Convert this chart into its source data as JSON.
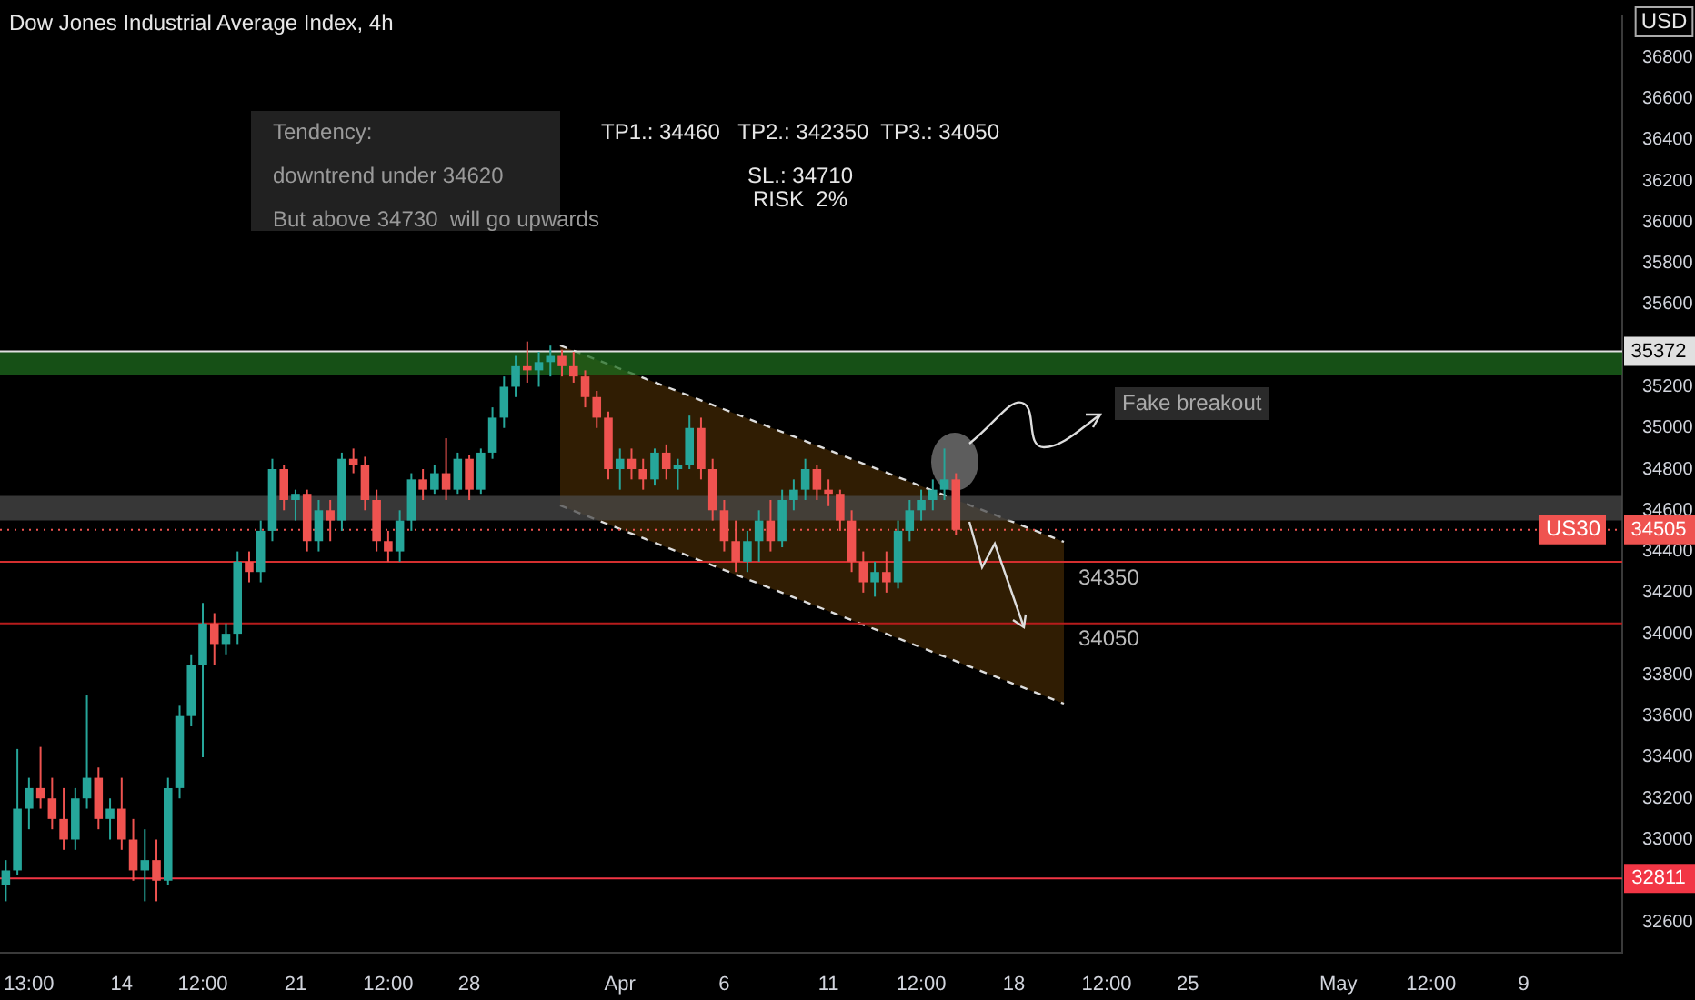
{
  "chart_data": {
    "type": "candlestick",
    "title": "Dow Jones Industrial Average Index, 4h",
    "ylabel": "USD",
    "categories": [
      null,
      null,
      "13:00",
      null,
      null,
      null,
      null,
      null,
      null,
      null,
      "14",
      null,
      null,
      null,
      null,
      null,
      null,
      "12:00",
      null,
      null,
      null,
      null,
      null,
      null,
      null,
      "21",
      null,
      null,
      null,
      null,
      null,
      null,
      null,
      "12:00",
      null,
      null,
      null,
      null,
      null,
      null,
      "28",
      null,
      null,
      null,
      null,
      null,
      null,
      null,
      null,
      null,
      null,
      null,
      null,
      "Apr",
      null,
      null,
      null,
      null,
      null,
      null,
      null,
      null,
      "6",
      null,
      null,
      null,
      null,
      null,
      null,
      null,
      null,
      "11",
      null,
      null,
      null,
      null,
      null,
      null,
      null,
      "12:00",
      null,
      null,
      null,
      null,
      null,
      null,
      null,
      "18",
      null,
      null,
      null,
      null,
      null,
      null,
      null,
      "12:00",
      null,
      null,
      null,
      null,
      null,
      null,
      "25",
      null,
      null,
      null,
      null,
      null,
      null,
      null,
      null,
      null,
      null,
      null,
      null,
      "May",
      null,
      null,
      null,
      null,
      null,
      null,
      null,
      "12:00",
      null,
      null,
      null,
      null,
      null,
      null,
      null,
      "9",
      null,
      null,
      null,
      null,
      null,
      null,
      null,
      null
    ],
    "ohlc": [
      [
        32780,
        32900,
        32700,
        32850
      ],
      [
        32850,
        33440,
        32830,
        33150
      ],
      [
        33150,
        33300,
        33050,
        33250
      ],
      [
        33250,
        33450,
        33150,
        33200
      ],
      [
        33200,
        33300,
        33050,
        33100
      ],
      [
        33100,
        33250,
        32950,
        33000
      ],
      [
        33000,
        33250,
        32950,
        33200
      ],
      [
        33200,
        33700,
        33150,
        33300
      ],
      [
        33300,
        33350,
        33050,
        33100
      ],
      [
        33100,
        33200,
        33000,
        33150
      ],
      [
        33150,
        33300,
        32950,
        33000
      ],
      [
        33000,
        33100,
        32800,
        32850
      ],
      [
        32850,
        33050,
        32700,
        32900
      ],
      [
        32900,
        33000,
        32700,
        32800
      ],
      [
        32800,
        33300,
        32780,
        33250
      ],
      [
        33250,
        33650,
        33200,
        33600
      ],
      [
        33600,
        33900,
        33550,
        33850
      ],
      [
        33850,
        34150,
        33400,
        34050
      ],
      [
        34050,
        34100,
        33850,
        33950
      ],
      [
        33950,
        34050,
        33900,
        34000
      ],
      [
        34000,
        34400,
        33950,
        34350
      ],
      [
        34350,
        34400,
        34250,
        34300
      ],
      [
        34300,
        34550,
        34250,
        34500
      ],
      [
        34500,
        34850,
        34450,
        34800
      ],
      [
        34800,
        34820,
        34600,
        34650
      ],
      [
        34650,
        34700,
        34550,
        34680
      ],
      [
        34680,
        34700,
        34400,
        34450
      ],
      [
        34450,
        34650,
        34400,
        34600
      ],
      [
        34600,
        34650,
        34450,
        34550
      ],
      [
        34550,
        34880,
        34500,
        34850
      ],
      [
        34850,
        34900,
        34780,
        34820
      ],
      [
        34820,
        34860,
        34600,
        34650
      ],
      [
        34650,
        34700,
        34400,
        34450
      ],
      [
        34450,
        34500,
        34350,
        34400
      ],
      [
        34400,
        34600,
        34350,
        34550
      ],
      [
        34550,
        34780,
        34500,
        34750
      ],
      [
        34750,
        34800,
        34650,
        34700
      ],
      [
        34700,
        34820,
        34680,
        34780
      ],
      [
        34780,
        34950,
        34650,
        34700
      ],
      [
        34700,
        34880,
        34680,
        34850
      ],
      [
        34850,
        34870,
        34650,
        34700
      ],
      [
        34700,
        34900,
        34680,
        34880
      ],
      [
        34880,
        35100,
        34850,
        35050
      ],
      [
        35050,
        35250,
        35000,
        35200
      ],
      [
        35200,
        35350,
        35150,
        35300
      ],
      [
        35300,
        35420,
        35220,
        35280
      ],
      [
        35280,
        35370,
        35200,
        35320
      ],
      [
        35320,
        35400,
        35250,
        35350
      ],
      [
        35350,
        35380,
        35250,
        35300
      ],
      [
        35300,
        35370,
        35220,
        35250
      ],
      [
        35250,
        35280,
        35100,
        35150
      ],
      [
        35150,
        35180,
        35000,
        35050
      ],
      [
        35050,
        35080,
        34750,
        34800
      ],
      [
        34800,
        34900,
        34700,
        34850
      ],
      [
        34850,
        34900,
        34750,
        34800
      ],
      [
        34800,
        34850,
        34700,
        34750
      ],
      [
        34750,
        34900,
        34720,
        34880
      ],
      [
        34880,
        34920,
        34750,
        34800
      ],
      [
        34800,
        34850,
        34700,
        34820
      ],
      [
        34820,
        35060,
        34800,
        35000
      ],
      [
        35000,
        35050,
        34750,
        34800
      ],
      [
        34800,
        34850,
        34550,
        34600
      ],
      [
        34600,
        34650,
        34400,
        34450
      ],
      [
        34450,
        34550,
        34300,
        34350
      ],
      [
        34350,
        34500,
        34300,
        34450
      ],
      [
        34450,
        34600,
        34350,
        34550
      ],
      [
        34550,
        34650,
        34400,
        34450
      ],
      [
        34450,
        34700,
        34420,
        34650
      ],
      [
        34650,
        34750,
        34600,
        34700
      ],
      [
        34700,
        34850,
        34650,
        34800
      ],
      [
        34800,
        34820,
        34650,
        34700
      ],
      [
        34700,
        34750,
        34620,
        34680
      ],
      [
        34680,
        34700,
        34500,
        34550
      ],
      [
        34550,
        34600,
        34300,
        34350
      ],
      [
        34350,
        34400,
        34200,
        34250
      ],
      [
        34250,
        34350,
        34180,
        34300
      ],
      [
        34300,
        34400,
        34200,
        34250
      ],
      [
        34250,
        34550,
        34220,
        34500
      ],
      [
        34500,
        34650,
        34450,
        34600
      ],
      [
        34600,
        34700,
        34550,
        34650
      ],
      [
        34650,
        34750,
        34600,
        34700
      ],
      [
        34700,
        34900,
        34650,
        34750
      ],
      [
        34750,
        34780,
        34480,
        34505
      ],
      null,
      null,
      null,
      null,
      null,
      null,
      null,
      null,
      null,
      null,
      null,
      null,
      null,
      null,
      null,
      null,
      null,
      null,
      null,
      null,
      null,
      null,
      null,
      null,
      null,
      null,
      null,
      null,
      null,
      null,
      null,
      null,
      null,
      null,
      null,
      null,
      null,
      null,
      null,
      null,
      null,
      null,
      null,
      null,
      null,
      null,
      null,
      null,
      null,
      null,
      null,
      null,
      null,
      null,
      null,
      null,
      null
    ],
    "ylim": [
      32450,
      37000
    ],
    "yticks": [
      32600,
      33000,
      33200,
      33400,
      33600,
      33800,
      34000,
      34200,
      34400,
      34600,
      34800,
      35000,
      35200,
      35600,
      35800,
      36000,
      36200,
      36400,
      36600,
      36800
    ],
    "ref_lines": [
      {
        "axis": "y",
        "value": 35372,
        "label": "35372",
        "color": "#e0e0e0",
        "line_style": "solid"
      },
      {
        "axis": "y",
        "value": 34505,
        "label": "34505",
        "color": "#ef5350",
        "line_style": "dotted"
      },
      {
        "axis": "y",
        "value": 34350,
        "color": "#d32f2f",
        "line_style": "solid"
      },
      {
        "axis": "y",
        "value": 34050,
        "color": "#b71c1c",
        "line_style": "solid"
      },
      {
        "axis": "y",
        "value": 32811,
        "label": "32811",
        "color": "#f23645",
        "line_style": "solid"
      }
    ],
    "bands": [
      {
        "axis": "y",
        "from": 35260,
        "to": 35372,
        "color": "#1e6b1e"
      },
      {
        "axis": "y",
        "from": 34550,
        "to": 34670,
        "color": "#4a4a4a"
      }
    ],
    "annotations": [
      "Tendency:",
      "downtrend under 34620",
      "But above 34730  will go upwards",
      "TP1.: 34460   TP2.: 342350  TP3.: 34050",
      "SL.: 34710",
      "RISK  2%",
      "Fake breakout",
      {
        "text": "34350",
        "y": 34350
      },
      {
        "text": "34050",
        "y": 34050
      },
      {
        "text": "US30",
        "y": 34505
      }
    ]
  }
}
